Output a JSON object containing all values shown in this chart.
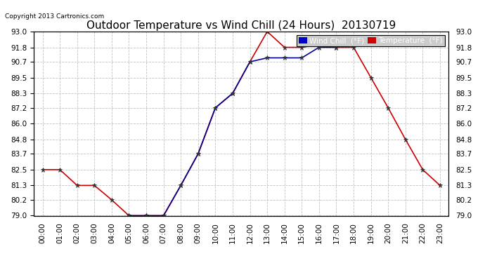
{
  "title": "Outdoor Temperature vs Wind Chill (24 Hours)  20130719",
  "copyright": "Copyright 2013 Cartronics.com",
  "hours": [
    "00:00",
    "01:00",
    "02:00",
    "03:00",
    "04:00",
    "05:00",
    "06:00",
    "07:00",
    "08:00",
    "09:00",
    "10:00",
    "11:00",
    "12:00",
    "13:00",
    "14:00",
    "15:00",
    "16:00",
    "17:00",
    "18:00",
    "19:00",
    "20:00",
    "21:00",
    "22:00",
    "23:00"
  ],
  "temperature": [
    82.5,
    82.5,
    81.3,
    81.3,
    80.2,
    79.0,
    79.0,
    79.0,
    81.3,
    83.7,
    87.2,
    88.3,
    90.7,
    93.0,
    91.8,
    91.8,
    92.0,
    91.8,
    91.8,
    89.5,
    87.2,
    84.8,
    82.5,
    81.3
  ],
  "wind_chill": [
    null,
    null,
    null,
    null,
    null,
    79.0,
    79.0,
    79.0,
    81.3,
    83.7,
    87.2,
    88.3,
    90.7,
    91.0,
    91.0,
    91.0,
    91.8,
    91.8,
    null,
    null,
    null,
    null,
    null,
    null
  ],
  "ylim": [
    79.0,
    93.0
  ],
  "yticks": [
    79.0,
    80.2,
    81.3,
    82.5,
    83.7,
    84.8,
    86.0,
    87.2,
    88.3,
    89.5,
    90.7,
    91.8,
    93.0
  ],
  "ytick_labels": [
    "79.0",
    "80.2",
    "81.3",
    "82.5",
    "83.7",
    "84.8",
    "86.0",
    "87.2",
    "88.3",
    "89.5",
    "90.7",
    "91.8",
    "93.0"
  ],
  "temp_color": "#cc0000",
  "wind_chill_color": "#000099",
  "background_color": "#ffffff",
  "plot_bg_color": "#ffffff",
  "grid_color": "#bbbbbb",
  "title_fontsize": 11,
  "tick_fontsize": 7.5,
  "legend_wind_chill_bg": "#0000cc",
  "legend_temp_bg": "#cc0000",
  "legend_text_color": "#ffffff",
  "fig_width": 6.9,
  "fig_height": 3.75,
  "dpi": 100
}
